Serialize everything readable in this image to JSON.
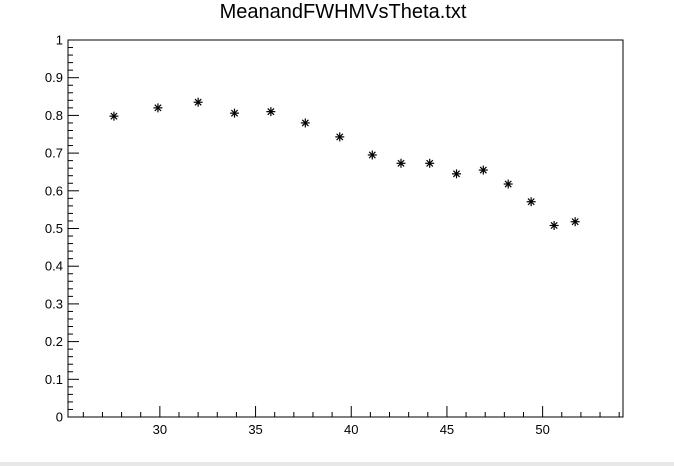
{
  "chart_data": {
    "type": "scatter",
    "title": "MeanandFWHMVsTheta.txt",
    "xlabel": "",
    "ylabel": "",
    "xlim": [
      25.2,
      54.2
    ],
    "ylim": [
      0,
      1
    ],
    "marker": "asterisk",
    "grid": false,
    "legend": "none",
    "x_ticks": [
      30,
      35,
      40,
      45,
      50
    ],
    "x_tick_labels": [
      "30",
      "35",
      "40",
      "45",
      "50"
    ],
    "y_ticks": [
      0,
      0.1,
      0.2,
      0.3,
      0.4,
      0.5,
      0.6,
      0.7,
      0.8,
      0.9,
      1
    ],
    "y_tick_labels": [
      "0",
      "0.1",
      "0.2",
      "0.3",
      "0.4",
      "0.5",
      "0.6",
      "0.7",
      "0.8",
      "0.9",
      "1"
    ],
    "series": [
      {
        "x": [
          27.6,
          29.9,
          32.0,
          33.9,
          35.8,
          37.6,
          39.4,
          41.1,
          42.6,
          44.1,
          45.5,
          46.9,
          48.2,
          49.4,
          50.6,
          51.7
        ],
        "y": [
          0.798,
          0.82,
          0.835,
          0.806,
          0.81,
          0.78,
          0.743,
          0.695,
          0.673,
          0.673,
          0.645,
          0.655,
          0.618,
          0.571,
          0.508,
          0.518
        ]
      }
    ],
    "colors": {
      "marker": "#000000",
      "axis": "#000000",
      "background": "#ffffff"
    }
  }
}
